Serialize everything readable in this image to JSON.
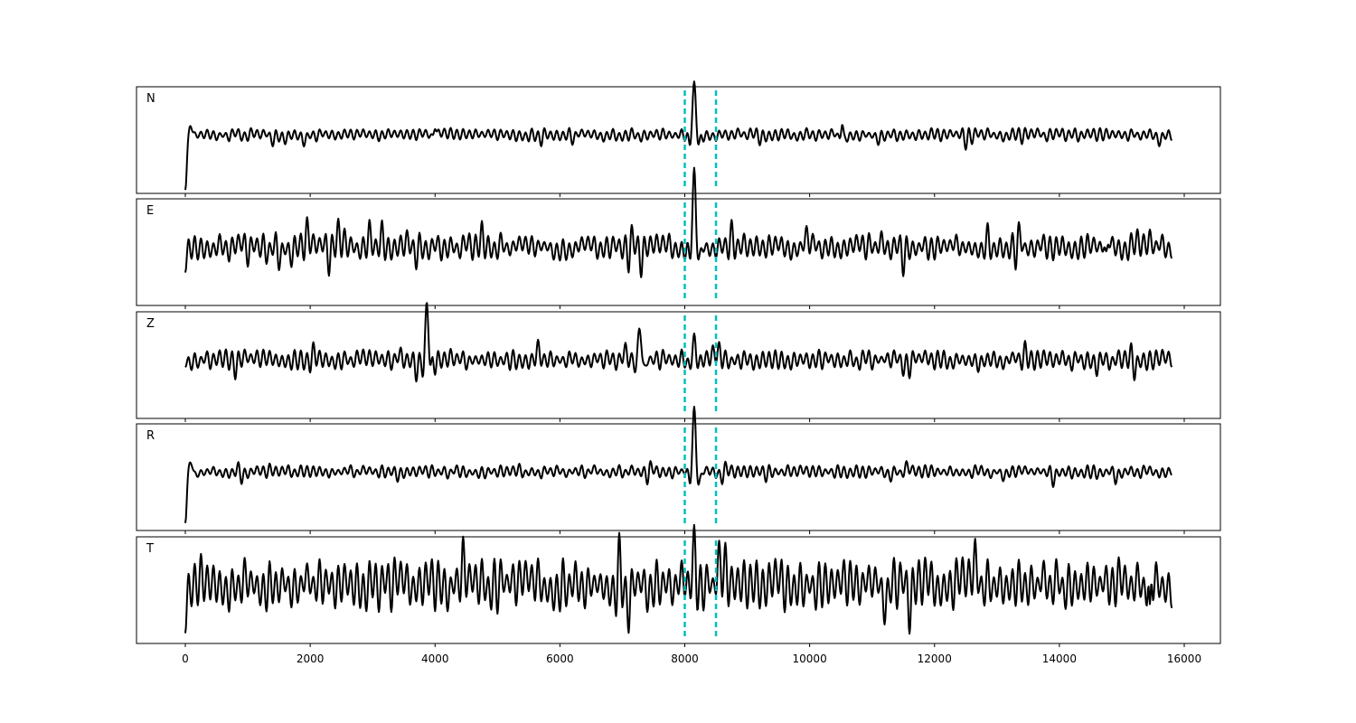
{
  "chart_data": {
    "type": "line",
    "title": "",
    "xlabel": "",
    "ylabel": "",
    "xlim": [
      -782,
      16579
    ],
    "xticks": [
      0,
      2000,
      4000,
      6000,
      8000,
      10000,
      12000,
      14000,
      16000
    ],
    "xtick_labels": [
      "0",
      "2000",
      "4000",
      "6000",
      "8000",
      "10000",
      "12000",
      "14000",
      "16000"
    ],
    "x_range_of_data": [
      0,
      15800
    ],
    "ylim": [
      -1.1,
      0.9
    ],
    "grid": false,
    "line_color": "#000000",
    "marker_color": "#00bfbf",
    "vertical_markers": [
      8000,
      8500
    ],
    "panels": [
      {
        "label": "N",
        "noise_amplitude": 0.1,
        "seed": 11,
        "events": [
          {
            "x": 0,
            "amplitude": -0.95,
            "width": 30
          },
          {
            "x": 90,
            "amplitude": 0.25,
            "width": 60
          },
          {
            "x": 8150,
            "amplitude": 0.9,
            "width": 70
          },
          {
            "x": 4000,
            "amplitude": 0.15,
            "width": 40
          },
          {
            "x": 10520,
            "amplitude": 0.2,
            "width": 40
          }
        ]
      },
      {
        "label": "E",
        "noise_amplitude": 0.2,
        "seed": 23,
        "events": [
          {
            "x": 0,
            "amplitude": -0.35,
            "width": 30
          },
          {
            "x": 8150,
            "amplitude": 0.95,
            "width": 70
          },
          {
            "x": 14750,
            "amplitude": -0.3,
            "width": 40
          }
        ]
      },
      {
        "label": "Z",
        "noise_amplitude": 0.15,
        "seed": 37,
        "events": [
          {
            "x": 3870,
            "amplitude": 0.95,
            "width": 60
          },
          {
            "x": 7280,
            "amplitude": 0.65,
            "width": 70
          },
          {
            "x": 8150,
            "amplitude": 0.3,
            "width": 70
          }
        ]
      },
      {
        "label": "R",
        "noise_amplitude": 0.1,
        "seed": 53,
        "events": [
          {
            "x": 0,
            "amplitude": -0.9,
            "width": 30
          },
          {
            "x": 90,
            "amplitude": 0.2,
            "width": 60
          },
          {
            "x": 8150,
            "amplitude": 0.95,
            "width": 70
          }
        ]
      },
      {
        "label": "T",
        "noise_amplitude": 0.4,
        "seed": 71,
        "events": [
          {
            "x": 0,
            "amplitude": -0.5,
            "width": 30
          },
          {
            "x": 8150,
            "amplitude": 0.7,
            "width": 60
          },
          {
            "x": 15450,
            "amplitude": -0.6,
            "width": 30
          }
        ]
      }
    ]
  }
}
